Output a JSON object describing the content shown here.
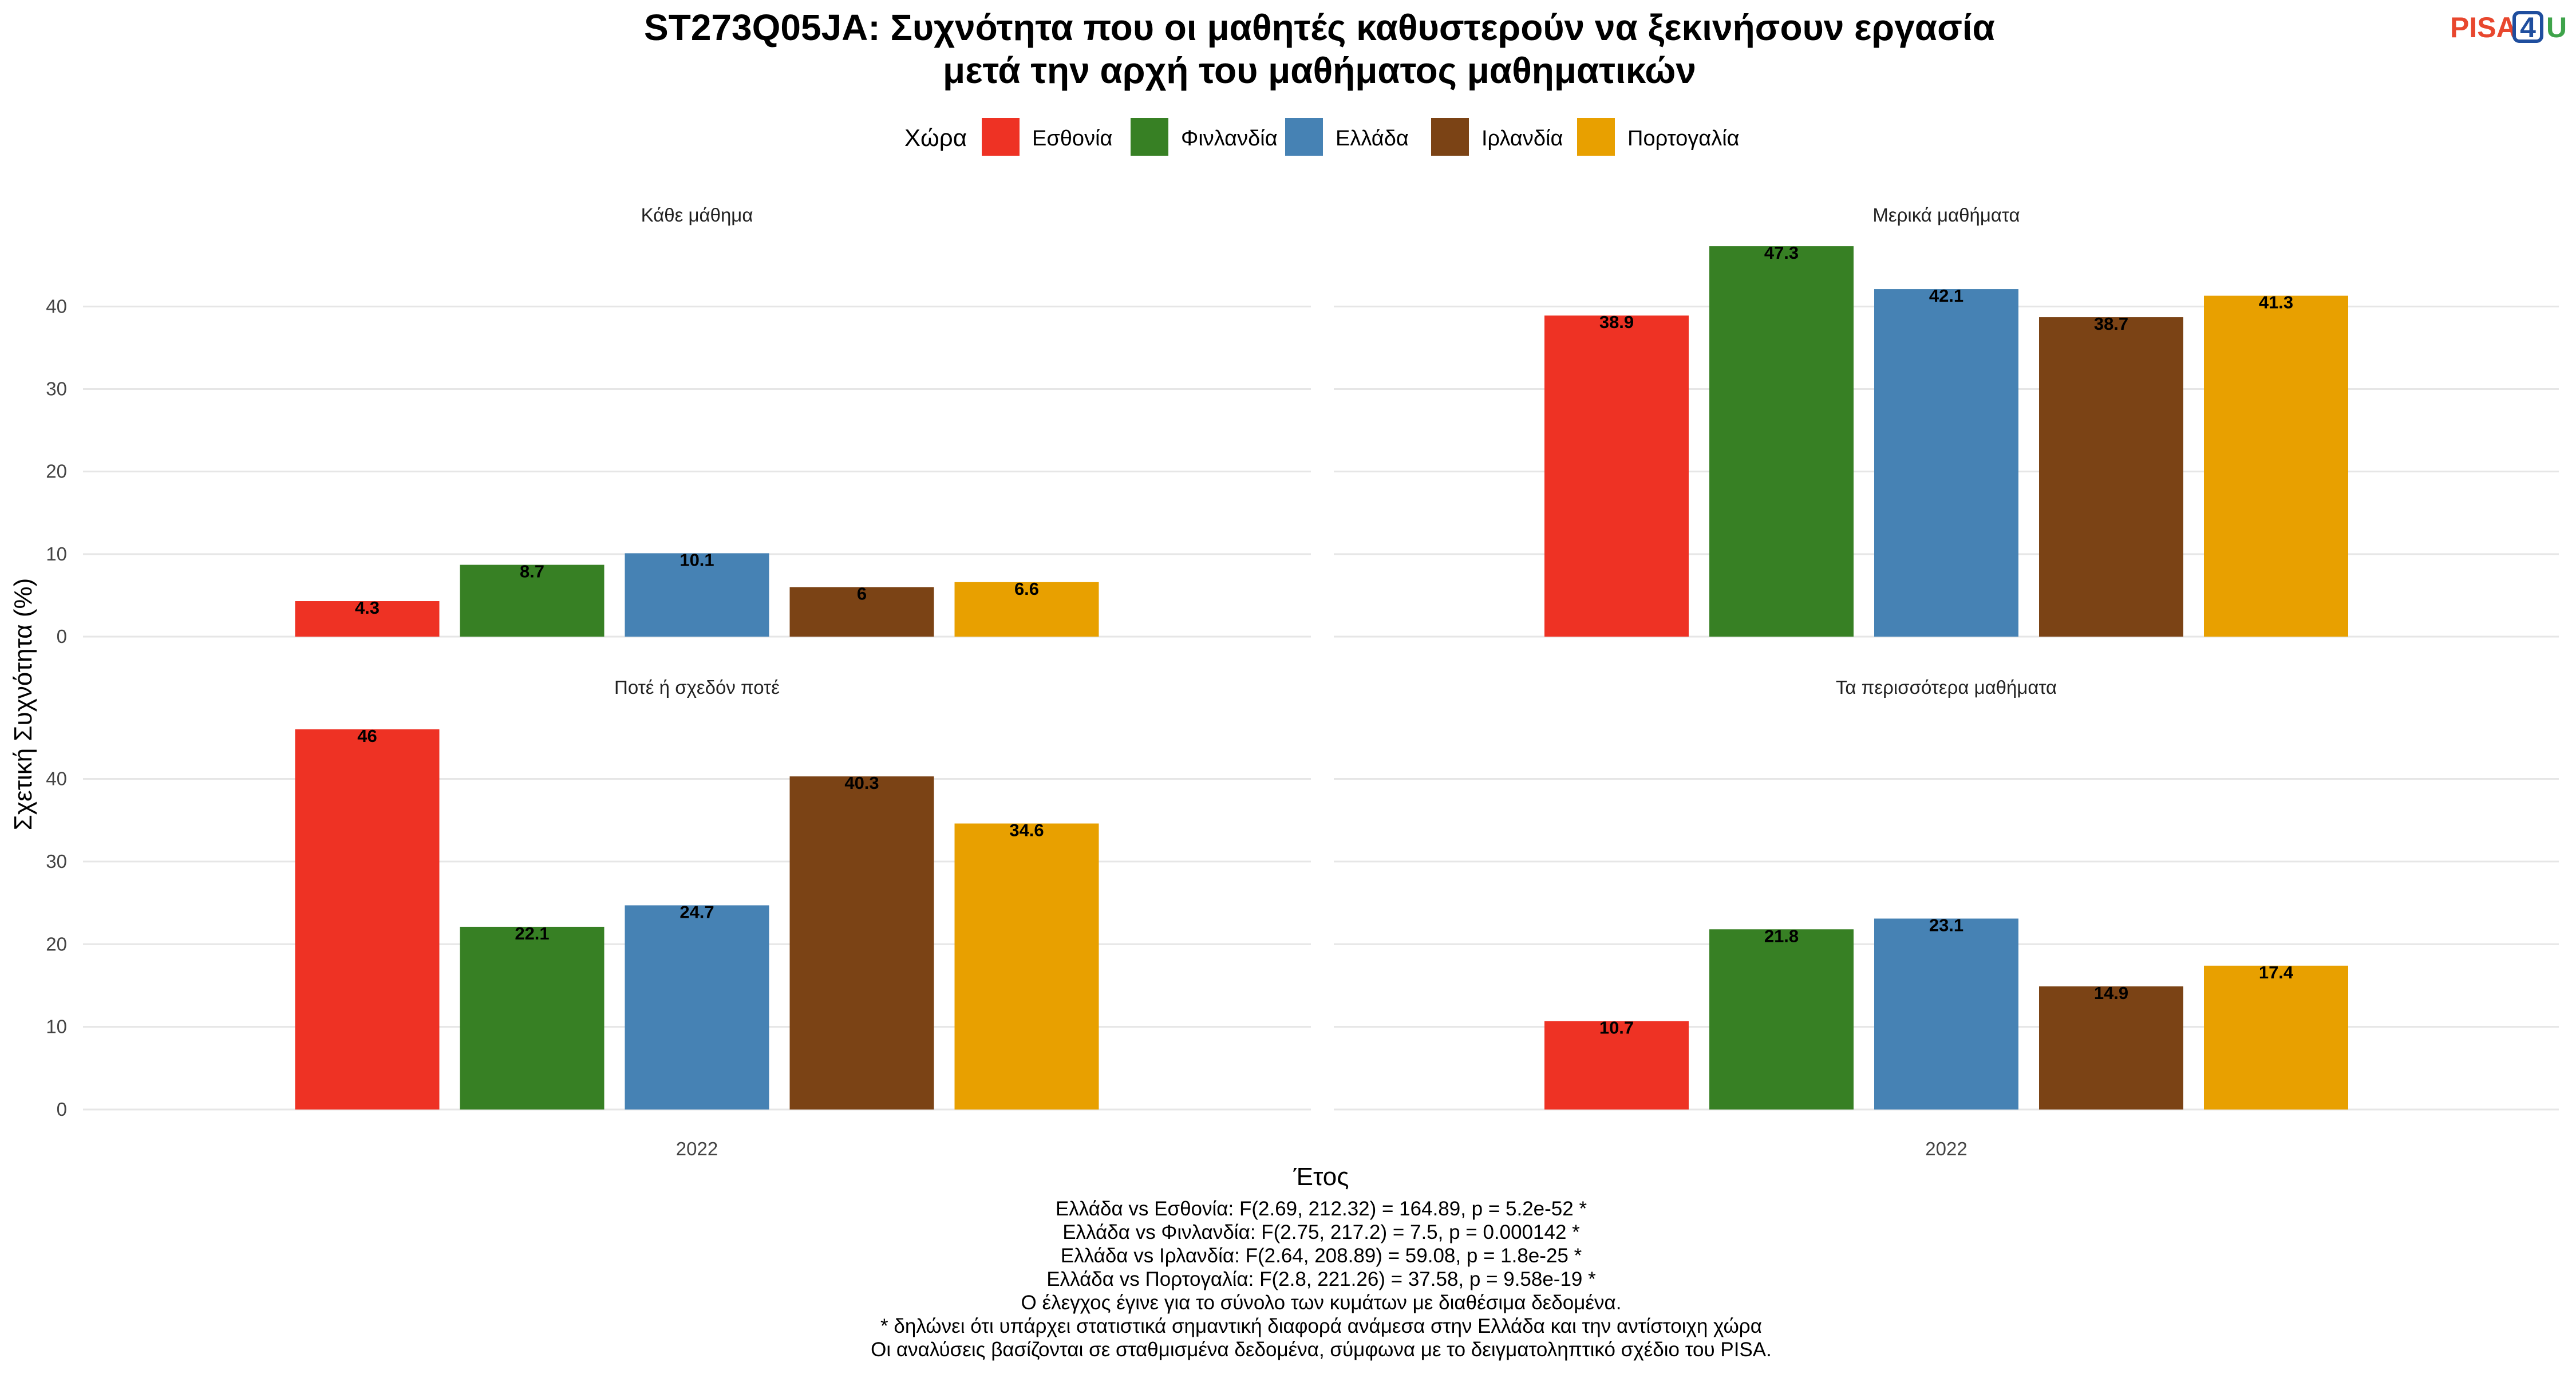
{
  "logo": {
    "part1": "PISA",
    "part2": "4",
    "part3": "U"
  },
  "chart_data": {
    "type": "bar",
    "title_lines": [
      "ST273Q05JA: Συχνότητα που οι μαθητές καθυστερούν να ξεκινήσουν εργασία",
      "μετά την αρχή του μαθήματος μαθηματικών"
    ],
    "legend": {
      "title": "Χώρα",
      "placement": "top",
      "entries": [
        {
          "name": "Εσθονία",
          "color": "#EE3224"
        },
        {
          "name": "Φινλανδία",
          "color": "#378024"
        },
        {
          "name": "Ελλάδα",
          "color": "#4682B4"
        },
        {
          "name": "Ιρλανδία",
          "color": "#7B4315"
        },
        {
          "name": "Πορτογαλία",
          "color": "#E8A000"
        }
      ]
    },
    "xlabel": "Έτος",
    "ylabel": "Σχετική Συχνότητα (%)",
    "ylim": [
      0,
      48
    ],
    "yticks": [
      0,
      10,
      20,
      30,
      40
    ],
    "grid": true,
    "facets": [
      {
        "label": "Κάθε μάθημα",
        "x": "2022",
        "values": [
          4.3,
          8.7,
          10.1,
          6,
          6.6
        ]
      },
      {
        "label": "Μερικά μαθήματα",
        "x": "2022",
        "values": [
          38.9,
          47.3,
          42.1,
          38.7,
          41.3
        ]
      },
      {
        "label": "Ποτέ ή σχεδόν ποτέ",
        "x": "2022",
        "values": [
          46,
          22.1,
          24.7,
          40.3,
          34.6
        ]
      },
      {
        "label": "Τα περισσότερα μαθήματα",
        "x": "2022",
        "values": [
          10.7,
          21.8,
          23.1,
          14.9,
          17.4
        ]
      }
    ]
  },
  "notes": [
    "Ελλάδα vs Εσθονία: F(2.69, 212.32) = 164.89, p = 5.2e-52 *",
    "Ελλάδα vs Φινλανδία: F(2.75, 217.2) = 7.5, p = 0.000142 *",
    "Ελλάδα vs Ιρλανδία: F(2.64, 208.89) = 59.08, p = 1.8e-25 *",
    "Ελλάδα vs Πορτογαλία: F(2.8, 221.26) = 37.58, p = 9.58e-19 *",
    "Ο έλεγχος έγινε για το σύνολο των κυμάτων με διαθέσιμα δεδομένα.",
    "* δηλώνει ότι υπάρχει στατιστικά σημαντική διαφορά ανάμεσα στην Ελλάδα και την αντίστοιχη χώρα",
    "Οι αναλύσεις βασίζονται σε σταθμισμένα δεδομένα, σύμφωνα με το δειγματοληπτικό σχέδιο του PISA."
  ]
}
